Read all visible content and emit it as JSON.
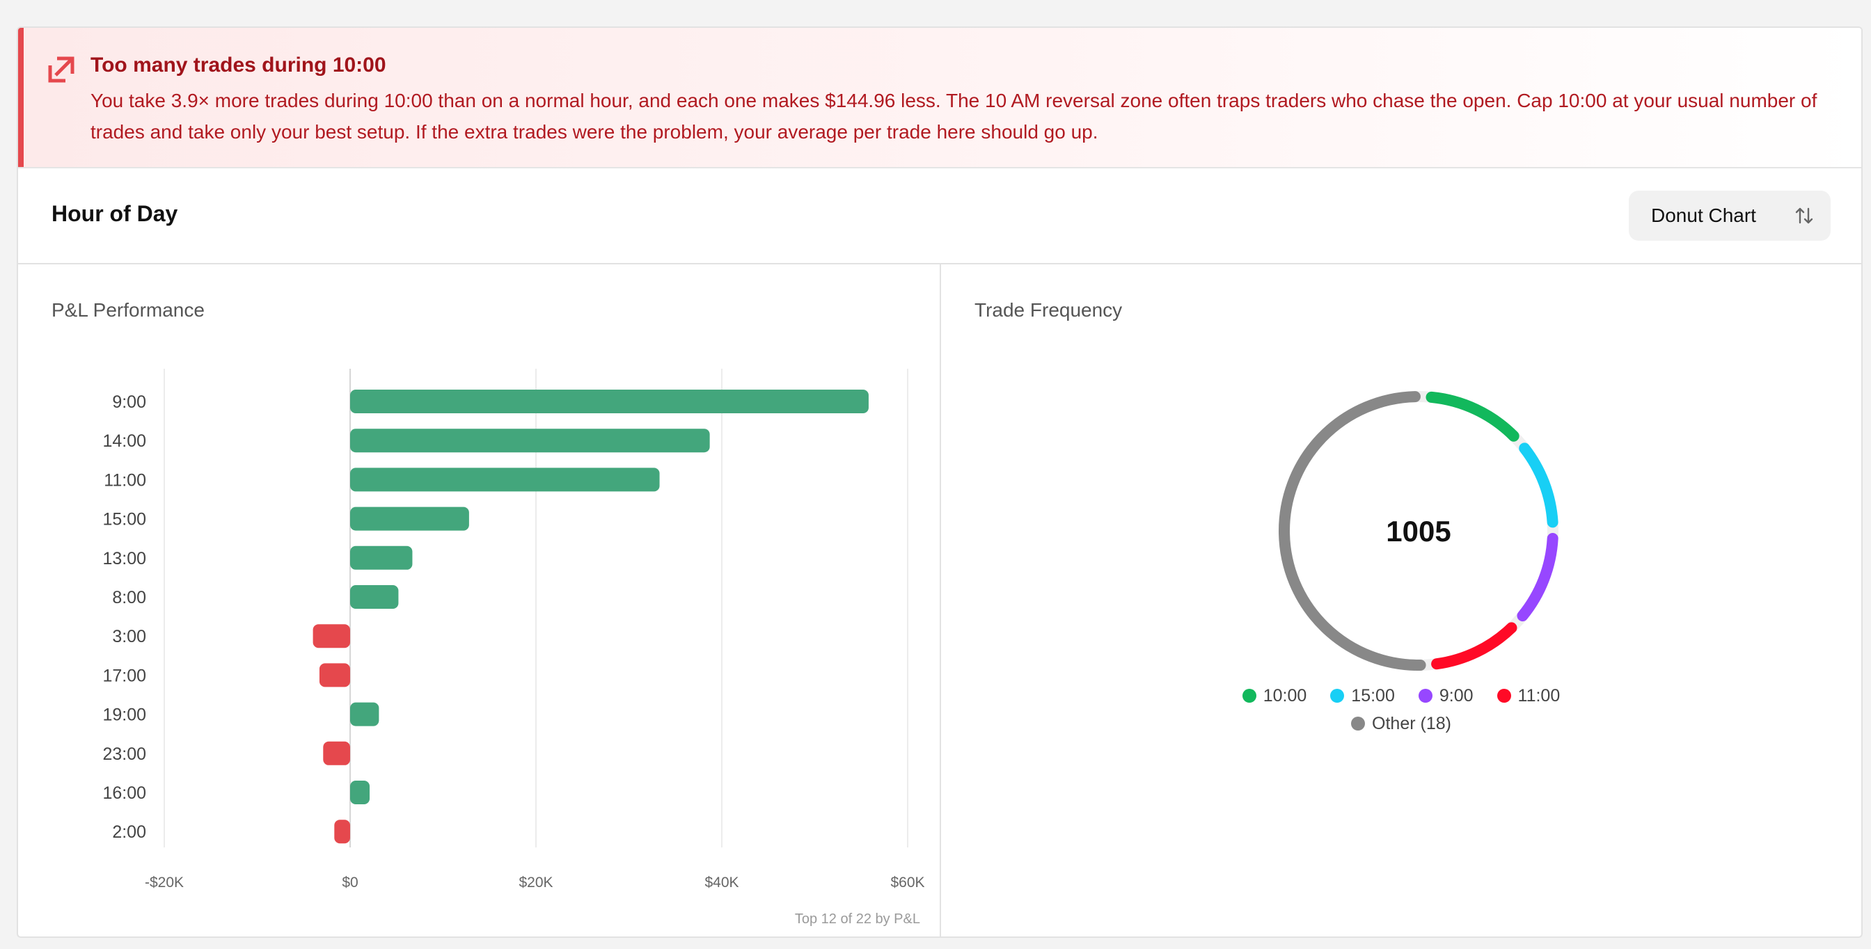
{
  "alert": {
    "title": "Too many trades during 10:00",
    "body": "You take 3.9× more trades during 10:00 than on a normal hour, and each one makes $144.96 less. The 10 AM reversal zone often traps traders who chase the open. Cap 10:00 at your usual number of trades and take only your best setup. If the extra trades were the problem, your average per trade here should go up.",
    "icon": "arrow-up-right-box-icon",
    "color": "#e5484d"
  },
  "header": {
    "title": "Hour of Day",
    "toggle_label": "Donut Chart",
    "toggle_icon": "sort-arrows-icon"
  },
  "pnl_panel": {
    "title": "P&L Performance",
    "footnote": "Top 12 of 22 by P&L"
  },
  "freq_panel": {
    "title": "Trade Frequency",
    "total": "1005"
  },
  "chart_data": [
    {
      "type": "bar",
      "orientation": "horizontal",
      "title": "P&L Performance",
      "categories": [
        "9:00",
        "14:00",
        "11:00",
        "15:00",
        "13:00",
        "8:00",
        "3:00",
        "17:00",
        "19:00",
        "23:00",
        "16:00",
        "2:00"
      ],
      "values": [
        55800,
        38700,
        33300,
        12800,
        6700,
        5200,
        -4000,
        -3300,
        3100,
        -2900,
        2100,
        -1700
      ],
      "xlim": [
        -20000,
        60000
      ],
      "xticks": [
        "-$20K",
        "$0",
        "$20K",
        "$40K",
        "$60K"
      ],
      "grid": true,
      "colors": {
        "positive": "#43a67c",
        "negative": "#e5484d"
      }
    },
    {
      "type": "pie",
      "variant": "donut",
      "title": "Trade Frequency",
      "center_label": "1005",
      "labels": [
        "10:00",
        "15:00",
        "9:00",
        "11:00",
        "Other (18)"
      ],
      "values": [
        130,
        115,
        120,
        120,
        520
      ],
      "colors": [
        "#12b85c",
        "#18cff5",
        "#9747ff",
        "#ff0a26",
        "#888888"
      ],
      "legend": "bottom"
    }
  ]
}
